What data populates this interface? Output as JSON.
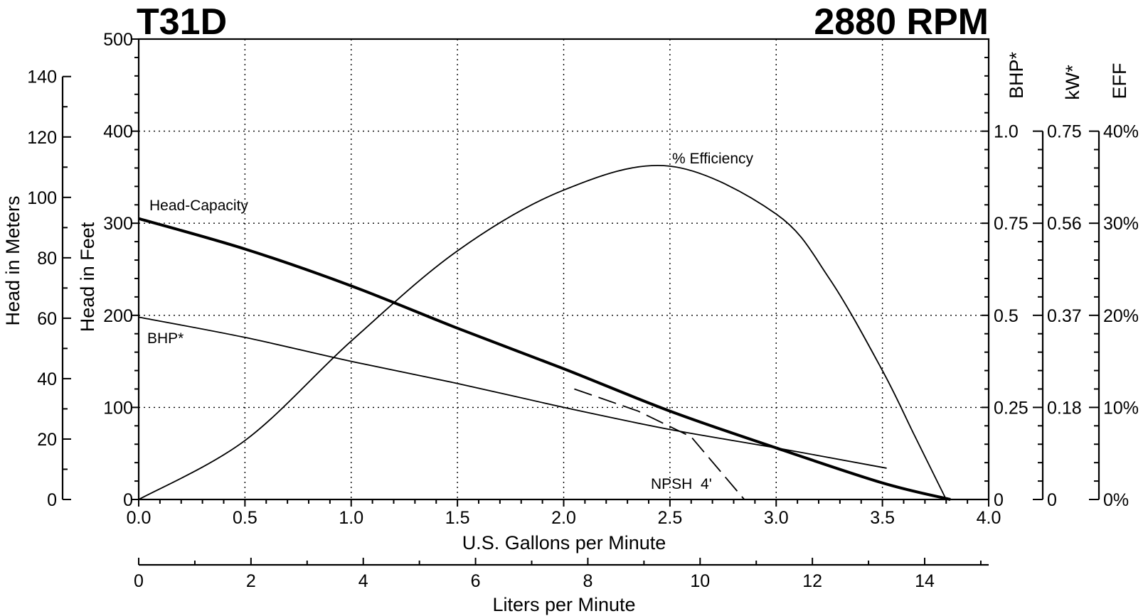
{
  "chart_data": {
    "type": "line",
    "title_left": "T31D",
    "title_right": "2880 RPM",
    "xlabel": "U.S. Gallons per Minute",
    "xlabel_secondary": "Liters per Minute",
    "ylabel_feet": "Head in Feet",
    "ylabel_meters": "Head in Meters",
    "ylabel_bhp": "BHP*",
    "ylabel_kw": "kW*",
    "ylabel_eff": "EFF",
    "xlim": [
      0,
      4
    ],
    "ylim_feet": [
      0,
      500
    ],
    "ylim_meters": [
      0,
      152.4
    ],
    "xlim_lpm": [
      0,
      15.14
    ],
    "x_ticks": [
      "0.0",
      "0.5",
      "1.0",
      "1.5",
      "2.0",
      "2.5",
      "3.0",
      "3.5",
      "4.0"
    ],
    "feet_ticks": [
      "0",
      "100",
      "200",
      "300",
      "400",
      "500"
    ],
    "meter_ticks": [
      "0",
      "20",
      "40",
      "60",
      "80",
      "100",
      "120",
      "140"
    ],
    "lpm_ticks": [
      "0",
      "2",
      "4",
      "6",
      "8",
      "10",
      "12",
      "14"
    ],
    "bhp_ticks": [
      "0",
      "0.25",
      "0.5",
      "0.75",
      "1.0"
    ],
    "kw_ticks": [
      "0",
      "0.18",
      "0.37",
      "0.56",
      "0.75"
    ],
    "eff_ticks": [
      "0%",
      "10%",
      "20%",
      "30%",
      "40%"
    ],
    "grid": true,
    "series": [
      {
        "name": "Head-Capacity",
        "axis": "feet",
        "style": "bold",
        "points": [
          [
            0,
            305
          ],
          [
            0.5,
            272
          ],
          [
            1.0,
            232
          ],
          [
            1.5,
            186
          ],
          [
            2.0,
            142
          ],
          [
            2.5,
            96
          ],
          [
            3.0,
            56
          ],
          [
            3.5,
            18
          ],
          [
            3.82,
            0
          ]
        ]
      },
      {
        "name": "% Efficiency",
        "axis": "eff",
        "style": "thin",
        "points": [
          [
            0,
            0
          ],
          [
            0.5,
            6.4
          ],
          [
            1.0,
            17.2
          ],
          [
            1.5,
            27.0
          ],
          [
            2.0,
            33.6
          ],
          [
            2.5,
            36.2
          ],
          [
            3.0,
            31.0
          ],
          [
            3.25,
            24.0
          ],
          [
            3.5,
            14.0
          ],
          [
            3.65,
            7.0
          ],
          [
            3.8,
            0
          ]
        ]
      },
      {
        "name": "BHP*",
        "axis": "bhp",
        "style": "thin",
        "points": [
          [
            0,
            0.495
          ],
          [
            0.5,
            0.44
          ],
          [
            1.0,
            0.375
          ],
          [
            1.5,
            0.315
          ],
          [
            2.0,
            0.25
          ],
          [
            2.5,
            0.19
          ],
          [
            3.0,
            0.14
          ],
          [
            3.52,
            0.085
          ]
        ]
      },
      {
        "name": "NPSH 4'",
        "axis": "feet",
        "style": "dashed",
        "points": [
          [
            2.05,
            120
          ],
          [
            2.35,
            96
          ],
          [
            2.6,
            68
          ],
          [
            2.85,
            0
          ]
        ]
      }
    ],
    "annotations": [
      "Head-Capacity",
      "% Efficiency",
      "BHP*",
      "NPSH  4'"
    ]
  }
}
